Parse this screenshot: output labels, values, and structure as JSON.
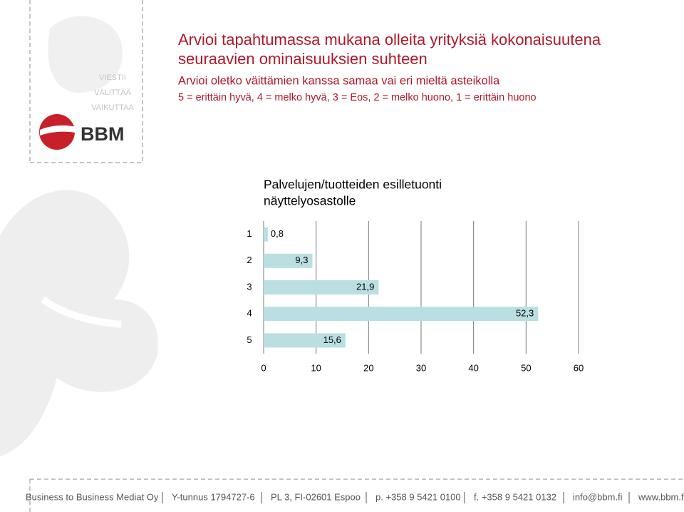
{
  "header": {
    "title_lines": [
      "Arvioi tapahtumassa mukana olleita yrityksiä kokonaisuutena",
      "seuraavien ominaisuuksien suhteen"
    ],
    "subtitle": "Arvioi oletko väittämien kanssa samaa vai eri mieltä asteikolla",
    "scale": "5 = erittäin hyvä, 4 = melko hyvä, 3 = Eos, 2 = melko huono, 1 = erittäin huono"
  },
  "logo": {
    "tagline": [
      "VIESTII",
      "VÄLITTÄÄ",
      "VAIKUTTAA"
    ],
    "brand": "BBM"
  },
  "chart_data": {
    "type": "bar",
    "orientation": "horizontal",
    "title_lines": [
      "Palvelujen/tuotteiden esilletuonti",
      "näyttelyosastolle"
    ],
    "categories": [
      "1",
      "2",
      "3",
      "4",
      "5"
    ],
    "values": [
      0.8,
      9.3,
      21.9,
      52.3,
      15.6
    ],
    "value_labels": [
      "0,8",
      "9,3",
      "21,9",
      "52,3",
      "15,6"
    ],
    "color": "#b9dfe2",
    "xlim": [
      0,
      60
    ],
    "xticks": [
      0,
      10,
      20,
      30,
      40,
      50,
      60
    ],
    "grid": true
  },
  "footer": {
    "items": [
      "Business to Business Mediat Oy",
      "Y-tunnus 1794727-6",
      "PL 3, FI-02601 Espoo",
      "p. +358 9 5421 0100",
      "f. +358 9 5421 0132",
      "info@bbm.fi",
      "www.bbm.fi"
    ]
  }
}
